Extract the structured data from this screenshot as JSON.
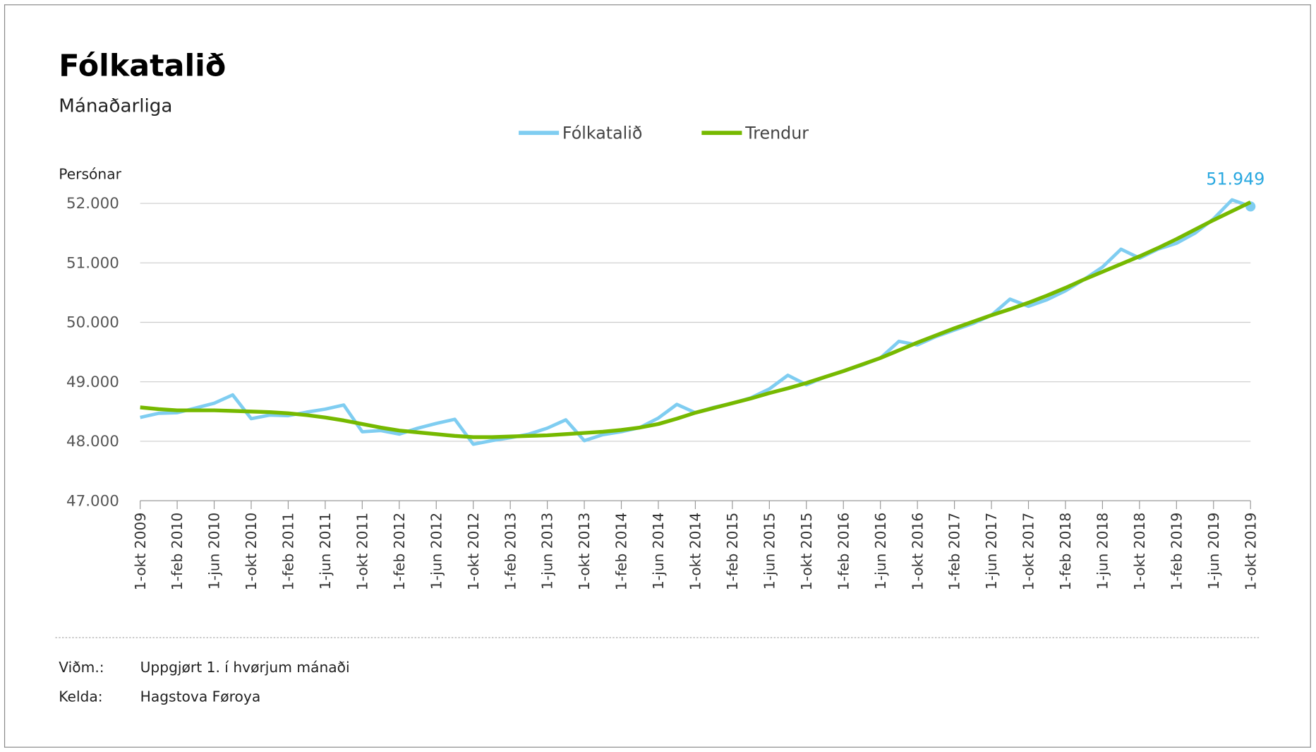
{
  "chart_data": {
    "type": "line",
    "title": "Fólkatalið",
    "subtitle": "Mánaðarliga",
    "y_label": "Persónar",
    "categories": [
      "1-okt 2009",
      null,
      "1-feb 2010",
      null,
      "1-jun 2010",
      null,
      "1-okt 2010",
      null,
      "1-feb 2011",
      null,
      "1-jun 2011",
      null,
      "1-okt 2011",
      null,
      "1-feb 2012",
      null,
      "1-jun 2012",
      null,
      "1-okt 2012",
      null,
      "1-feb 2013",
      null,
      "1-jun 2013",
      null,
      "1-okt 2013",
      null,
      "1-feb 2014",
      null,
      "1-jun 2014",
      null,
      "1-okt 2014",
      null,
      "1-feb 2015",
      null,
      "1-jun 2015",
      null,
      "1-okt 2015",
      null,
      "1-feb 2016",
      null,
      "1-jun 2016",
      null,
      "1-okt 2016",
      null,
      "1-feb 2017",
      null,
      "1-jun 2017",
      null,
      "1-okt 2017",
      null,
      "1-feb 2018",
      null,
      "1-jun 2018",
      null,
      "1-okt 2018",
      null,
      "1-feb 2019",
      null,
      "1-jun 2019",
      null,
      "1-okt 2019"
    ],
    "series": [
      {
        "name": "Fólkatalið",
        "color": "#7fcdf1",
        "values": [
          48400,
          48470,
          48480,
          48560,
          48640,
          48780,
          48380,
          48440,
          48430,
          48490,
          48540,
          48610,
          48160,
          48180,
          48120,
          48220,
          48300,
          48370,
          47950,
          48010,
          48060,
          48120,
          48220,
          48360,
          48010,
          48110,
          48160,
          48230,
          48390,
          48620,
          48480,
          48570,
          48640,
          48730,
          48880,
          49110,
          48950,
          49080,
          49180,
          49280,
          49400,
          49680,
          49620,
          49760,
          49870,
          49980,
          50120,
          50390,
          50270,
          50380,
          50530,
          50720,
          50930,
          51230,
          51080,
          51230,
          51330,
          51500,
          51740,
          52060,
          51949
        ],
        "value_labels": [
          null,
          null,
          null,
          null,
          null,
          null,
          null,
          null,
          null,
          null,
          null,
          null,
          null,
          null,
          null,
          null,
          null,
          null,
          null,
          null,
          null,
          null,
          null,
          null,
          null,
          null,
          null,
          null,
          null,
          null,
          null,
          null,
          null,
          null,
          null,
          null,
          null,
          null,
          null,
          null,
          null,
          null,
          null,
          null,
          null,
          null,
          null,
          null,
          null,
          null,
          null,
          null,
          null,
          null,
          null,
          null,
          null,
          null,
          null,
          null,
          "51.949"
        ],
        "label_color": "#29a8e0"
      },
      {
        "name": "Trendur",
        "color": "#76b900",
        "values": [
          48570,
          48540,
          48520,
          48520,
          48520,
          48510,
          48500,
          48490,
          48470,
          48440,
          48400,
          48350,
          48290,
          48230,
          48180,
          48150,
          48120,
          48090,
          48070,
          48070,
          48080,
          48090,
          48100,
          48120,
          48140,
          48160,
          48190,
          48230,
          48290,
          48380,
          48480,
          48560,
          48640,
          48720,
          48810,
          48890,
          48980,
          49080,
          49180,
          49290,
          49400,
          49530,
          49660,
          49780,
          49900,
          50010,
          50120,
          50220,
          50330,
          50450,
          50580,
          50720,
          50850,
          50980,
          51110,
          51250,
          51400,
          51560,
          51720,
          51870,
          52020
        ]
      }
    ],
    "ylim": [
      47000,
      52000
    ],
    "yticks": [
      {
        "value": 47000,
        "label": "47.000"
      },
      {
        "value": 48000,
        "label": "48.000"
      },
      {
        "value": 49000,
        "label": "49.000"
      },
      {
        "value": 50000,
        "label": "50.000"
      },
      {
        "value": 51000,
        "label": "51.000"
      },
      {
        "value": 52000,
        "label": "52.000"
      }
    ],
    "grid": true,
    "legend": "top",
    "notes": [
      {
        "key": "Viðm.:",
        "text": "Uppgjørt 1. í hvørjum mánaði"
      },
      {
        "key": "Kelda:",
        "text": "Hagstova Føroya"
      }
    ]
  }
}
